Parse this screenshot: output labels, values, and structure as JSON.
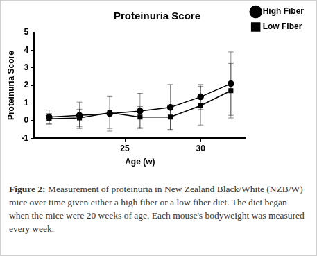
{
  "chart_data": {
    "type": "line",
    "title": "Proteinuria Score",
    "x_label": "Age (w)",
    "y_label": "Proteinuria Score",
    "xlim": [
      19,
      33
    ],
    "xticks": [
      25,
      30
    ],
    "ylim": [
      -1,
      5
    ],
    "yticks": [
      -1,
      0,
      1,
      2,
      3,
      4,
      5
    ],
    "grid": false,
    "legend": "right",
    "x": [
      20,
      22,
      24,
      26,
      28,
      30,
      32
    ],
    "series": [
      {
        "name": "High Fiber",
        "color": "#000000",
        "marker": "circle",
        "line_style": "solid",
        "values": [
          0.2,
          0.3,
          0.4,
          0.55,
          0.75,
          1.35,
          2.1
        ],
        "errors": [
          0.4,
          0.75,
          1.0,
          1.0,
          1.3,
          0.7,
          1.8
        ]
      },
      {
        "name": "Low Fiber",
        "color": "#000000",
        "marker": "square",
        "line_style": "solid",
        "values": [
          0.1,
          0.15,
          0.45,
          0.2,
          0.2,
          0.85,
          1.7
        ],
        "errors": [
          0.3,
          0.5,
          0.9,
          0.6,
          0.7,
          1.1,
          1.55
        ]
      }
    ],
    "caption": {
      "label": "Figure 2:",
      "text": "Measurement of proteinuria in New Zealand Black/White (NZB/W) mice over time given either a high fiber or a low fiber diet. The diet began when the mice were 20 weeks of age. Each mouse's bodyweight was measured every week."
    }
  }
}
